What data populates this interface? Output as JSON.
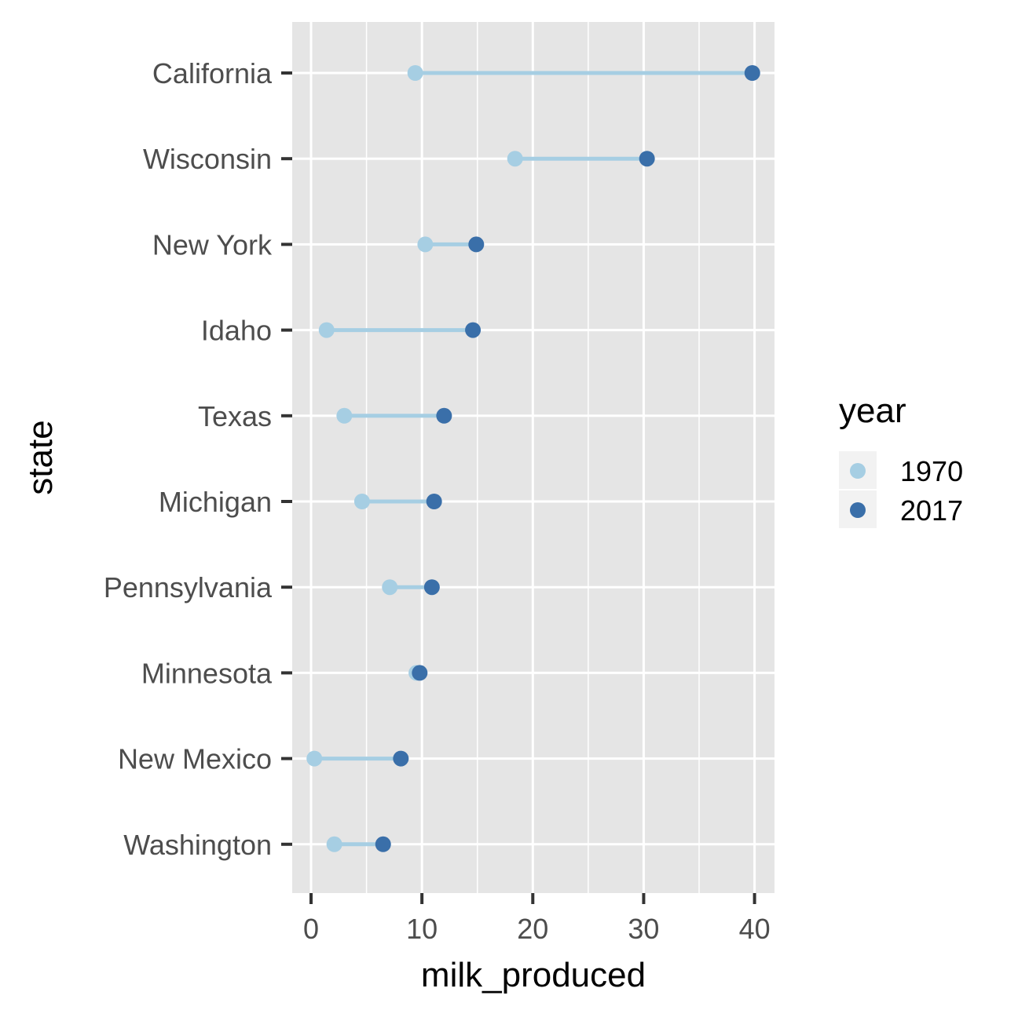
{
  "chart_data": {
    "type": "dumbbell",
    "xlabel": "milk_produced",
    "ylabel": "state",
    "xlim": [
      -1.7,
      41.8
    ],
    "xticks": [
      0,
      10,
      20,
      30,
      40
    ],
    "x_minor_ticks": [
      5,
      15,
      25,
      35
    ],
    "grid": true,
    "legend": {
      "title": "year",
      "placement": "right",
      "entries": [
        {
          "label": "1970",
          "color": "#a6cee3"
        },
        {
          "label": "2017",
          "color": "#3a6fa9"
        }
      ]
    },
    "segment_color": "#a6cee3",
    "panel_color": "#e5e5e5",
    "categories": [
      "California",
      "Wisconsin",
      "New York",
      "Idaho",
      "Texas",
      "Michigan",
      "Pennsylvania",
      "Minnesota",
      "New Mexico",
      "Washington"
    ],
    "series": [
      {
        "name": "1970",
        "values": [
          9.4,
          18.4,
          10.3,
          1.4,
          3.0,
          4.6,
          7.1,
          9.5,
          0.3,
          2.1
        ]
      },
      {
        "name": "2017",
        "values": [
          39.8,
          30.3,
          14.9,
          14.6,
          12.0,
          11.1,
          10.9,
          9.8,
          8.1,
          6.5
        ]
      }
    ]
  }
}
